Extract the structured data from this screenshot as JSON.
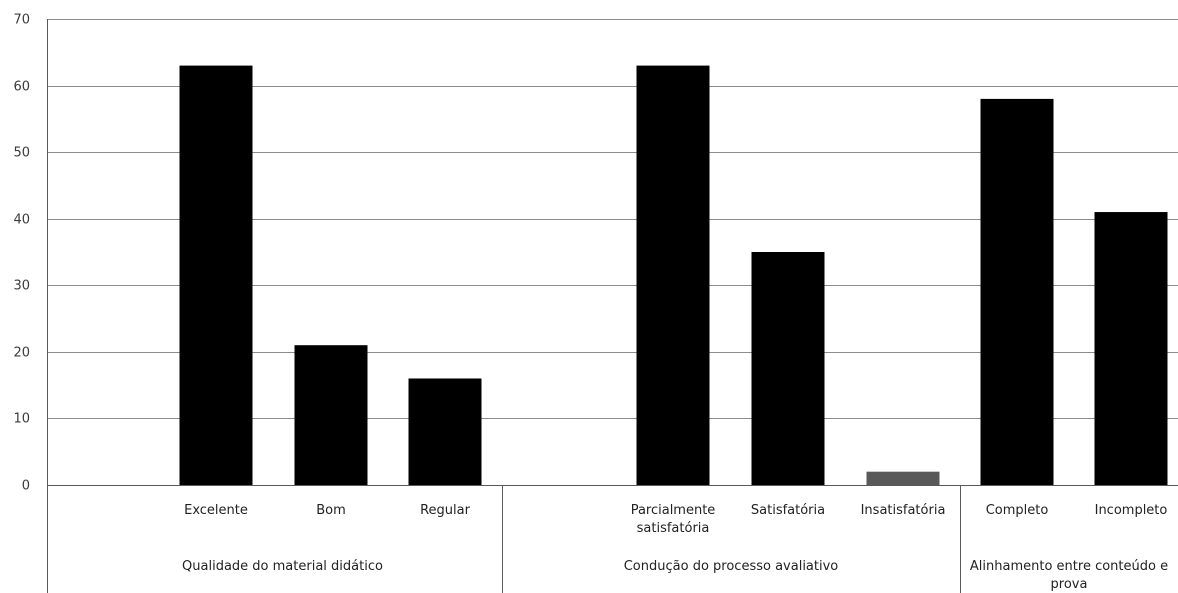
{
  "chart_data": {
    "type": "bar",
    "title": "",
    "xlabel": "",
    "ylabel": "",
    "ylim": [
      0,
      70
    ],
    "ytick_step": 10,
    "y_ticks": [
      "0",
      "10",
      "20",
      "30",
      "40",
      "50",
      "60",
      "70"
    ],
    "grid": "horizontal",
    "legend": "none",
    "groups": [
      {
        "label": "Qualidade do material didático",
        "categories": [
          {
            "label": "Excelente",
            "value": 63
          },
          {
            "label": "Bom",
            "value": 21
          },
          {
            "label": "Regular",
            "value": 16
          }
        ]
      },
      {
        "label": "Condução do processo avaliativo",
        "categories": [
          {
            "label": "Parcialmente satisfatória",
            "value": 63
          },
          {
            "label": "Satisfatória",
            "value": 35
          },
          {
            "label": "Insatisfatória",
            "value": 2
          }
        ]
      },
      {
        "label": "Alinhamento entre conteúdo e prova",
        "categories": [
          {
            "label": "Completo",
            "value": 58
          },
          {
            "label": "Incompleto",
            "value": 41
          }
        ]
      }
    ],
    "colors": {
      "bar": "#000000",
      "bar_small": "#595959",
      "grid": "#8c8c8c",
      "axis": "#595959",
      "text": "#222222"
    }
  }
}
